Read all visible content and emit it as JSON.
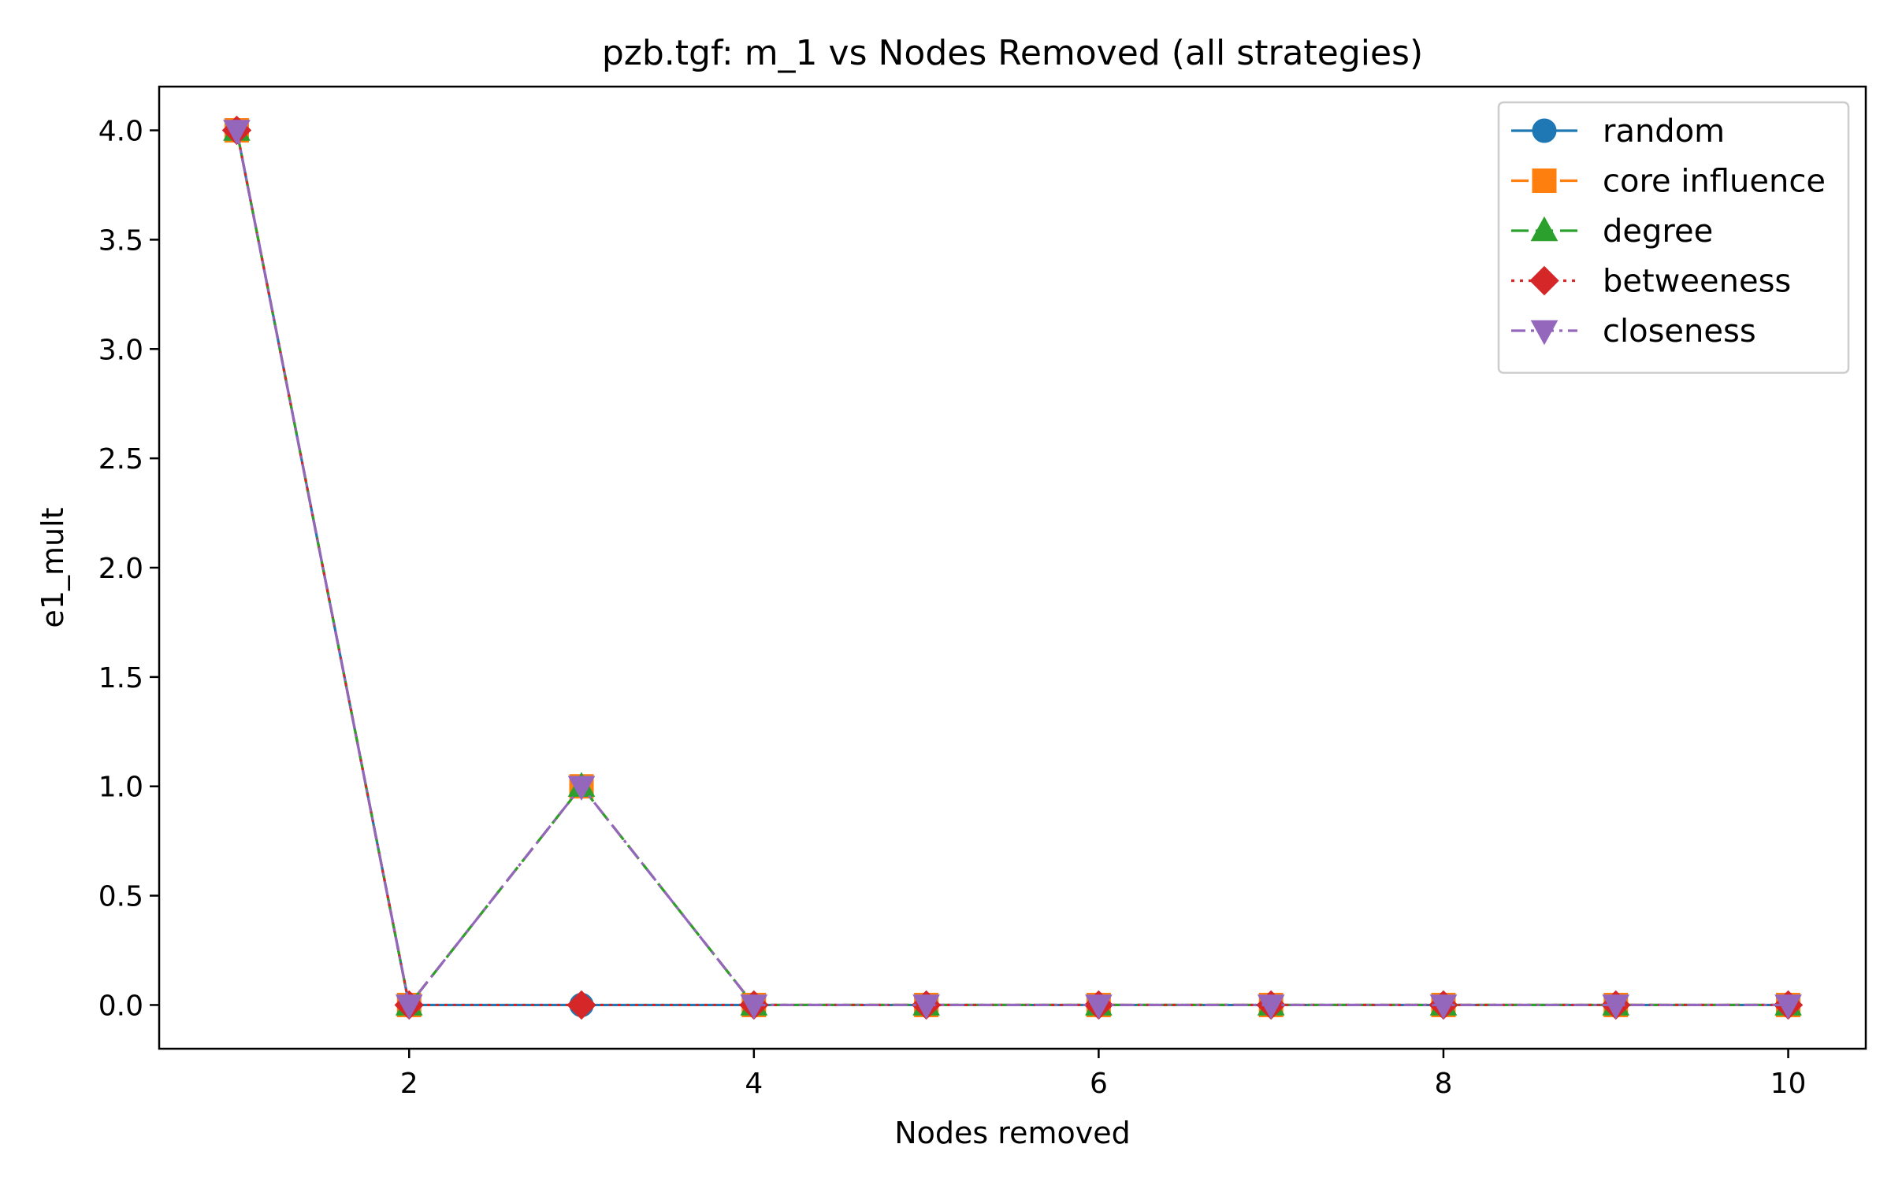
{
  "chart_data": {
    "type": "line",
    "title": "pzb.tgf: m_1 vs Nodes Removed (all strategies)",
    "xlabel": "Nodes removed",
    "ylabel": "e1_mult",
    "xlim": [
      0.55,
      10.45
    ],
    "ylim": [
      -0.2,
      4.2
    ],
    "xticks": [
      2,
      4,
      6,
      8,
      10
    ],
    "xtick_labels": [
      "2",
      "4",
      "6",
      "8",
      "10"
    ],
    "yticks": [
      0,
      0.5,
      1,
      1.5,
      2,
      2.5,
      3,
      3.5,
      4
    ],
    "ytick_labels": [
      "0.0",
      "0.5",
      "1.0",
      "1.5",
      "2.0",
      "2.5",
      "3.0",
      "3.5",
      "4.0"
    ],
    "grid": false,
    "legend_position": "top-right",
    "x": [
      1,
      2,
      3,
      4,
      5,
      6,
      7,
      8,
      9,
      10
    ],
    "series": [
      {
        "name": "random",
        "values": [
          4,
          0,
          0,
          0,
          0,
          0,
          0,
          0,
          0,
          0
        ],
        "color": "#1f77b4",
        "marker": "circle",
        "dash": "solid"
      },
      {
        "name": "core influence",
        "values": [
          4,
          0,
          1,
          0,
          0,
          0,
          0,
          0,
          0,
          0
        ],
        "color": "#ff7f0e",
        "marker": "square",
        "dash": "dashed"
      },
      {
        "name": "degree",
        "values": [
          4,
          0,
          1,
          0,
          0,
          0,
          0,
          0,
          0,
          0
        ],
        "color": "#2ca02c",
        "marker": "triangle-up",
        "dash": "dashed"
      },
      {
        "name": "betweeness",
        "values": [
          4,
          0,
          0,
          0,
          0,
          0,
          0,
          0,
          0,
          0
        ],
        "color": "#d62728",
        "marker": "diamond",
        "dash": "dotted"
      },
      {
        "name": "closeness",
        "values": [
          4,
          0,
          1,
          0,
          0,
          0,
          0,
          0,
          0,
          0
        ],
        "color": "#9467bd",
        "marker": "triangle-down",
        "dash": "dashdot"
      }
    ]
  }
}
